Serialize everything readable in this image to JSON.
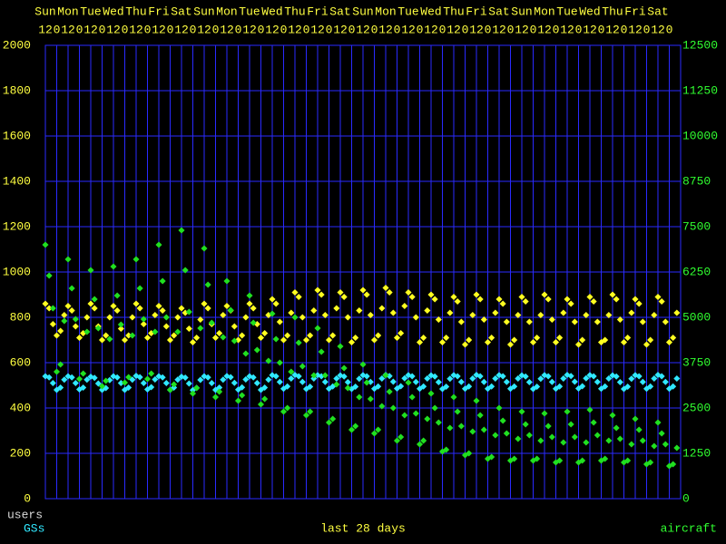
{
  "chart_data": {
    "type": "scatter",
    "subtitle": "last 28 days",
    "xlim": [
      0,
      672
    ],
    "xticks": [
      {
        "value": 0,
        "label": "12"
      },
      {
        "value": 12,
        "label": "0"
      },
      {
        "value": 24,
        "label": "12"
      },
      {
        "value": 36,
        "label": "0"
      },
      {
        "value": 48,
        "label": "12"
      },
      {
        "value": 60,
        "label": "0"
      },
      {
        "value": 72,
        "label": "12"
      },
      {
        "value": 84,
        "label": "0"
      },
      {
        "value": 96,
        "label": "12"
      },
      {
        "value": 108,
        "label": "0"
      },
      {
        "value": 120,
        "label": "12"
      },
      {
        "value": 132,
        "label": "0"
      },
      {
        "value": 144,
        "label": "12"
      },
      {
        "value": 156,
        "label": "0"
      },
      {
        "value": 168,
        "label": "12"
      },
      {
        "value": 180,
        "label": "0"
      },
      {
        "value": 192,
        "label": "12"
      },
      {
        "value": 204,
        "label": "0"
      },
      {
        "value": 216,
        "label": "12"
      },
      {
        "value": 228,
        "label": "0"
      },
      {
        "value": 240,
        "label": "12"
      },
      {
        "value": 252,
        "label": "0"
      },
      {
        "value": 264,
        "label": "12"
      },
      {
        "value": 276,
        "label": "0"
      },
      {
        "value": 288,
        "label": "12"
      },
      {
        "value": 300,
        "label": "0"
      },
      {
        "value": 312,
        "label": "12"
      },
      {
        "value": 324,
        "label": "0"
      },
      {
        "value": 336,
        "label": "12"
      },
      {
        "value": 348,
        "label": "0"
      },
      {
        "value": 360,
        "label": "12"
      },
      {
        "value": 372,
        "label": "0"
      },
      {
        "value": 384,
        "label": "12"
      },
      {
        "value": 396,
        "label": "0"
      },
      {
        "value": 408,
        "label": "12"
      },
      {
        "value": 420,
        "label": "0"
      },
      {
        "value": 432,
        "label": "12"
      },
      {
        "value": 444,
        "label": "0"
      },
      {
        "value": 456,
        "label": "12"
      },
      {
        "value": 468,
        "label": "0"
      },
      {
        "value": 480,
        "label": "12"
      },
      {
        "value": 492,
        "label": "0"
      },
      {
        "value": 504,
        "label": "12"
      },
      {
        "value": 516,
        "label": "0"
      },
      {
        "value": 528,
        "label": "12"
      },
      {
        "value": 540,
        "label": "0"
      },
      {
        "value": 552,
        "label": "12"
      },
      {
        "value": 564,
        "label": "0"
      },
      {
        "value": 576,
        "label": "12"
      },
      {
        "value": 588,
        "label": "0"
      },
      {
        "value": 600,
        "label": "12"
      },
      {
        "value": 612,
        "label": "0"
      },
      {
        "value": 624,
        "label": "12"
      },
      {
        "value": 636,
        "label": "0"
      },
      {
        "value": 648,
        "label": "12"
      },
      {
        "value": 660,
        "label": "0"
      }
    ],
    "day_labels": [
      {
        "value": 0,
        "label": "Sun"
      },
      {
        "value": 24,
        "label": "Mon"
      },
      {
        "value": 48,
        "label": "Tue"
      },
      {
        "value": 72,
        "label": "Wed"
      },
      {
        "value": 96,
        "label": "Thu"
      },
      {
        "value": 120,
        "label": "Fri"
      },
      {
        "value": 144,
        "label": "Sat"
      },
      {
        "value": 168,
        "label": "Sun"
      },
      {
        "value": 192,
        "label": "Mon"
      },
      {
        "value": 216,
        "label": "Tue"
      },
      {
        "value": 240,
        "label": "Wed"
      },
      {
        "value": 264,
        "label": "Thu"
      },
      {
        "value": 288,
        "label": "Fri"
      },
      {
        "value": 312,
        "label": "Sat"
      },
      {
        "value": 336,
        "label": "Sun"
      },
      {
        "value": 360,
        "label": "Mon"
      },
      {
        "value": 384,
        "label": "Tue"
      },
      {
        "value": 408,
        "label": "Wed"
      },
      {
        "value": 432,
        "label": "Thu"
      },
      {
        "value": 456,
        "label": "Fri"
      },
      {
        "value": 480,
        "label": "Sat"
      },
      {
        "value": 504,
        "label": "Sun"
      },
      {
        "value": 528,
        "label": "Mon"
      },
      {
        "value": 552,
        "label": "Tue"
      },
      {
        "value": 576,
        "label": "Wed"
      },
      {
        "value": 600,
        "label": "Thu"
      },
      {
        "value": 624,
        "label": "Fri"
      },
      {
        "value": 648,
        "label": "Sat"
      }
    ],
    "ylim": [
      0,
      2000
    ],
    "yticks": [
      0,
      200,
      400,
      600,
      800,
      1000,
      1200,
      1400,
      1600,
      1800,
      2000
    ],
    "y2lim": [
      0,
      12500
    ],
    "y2ticks": [
      0,
      1250,
      2500,
      3750,
      5000,
      6250,
      7500,
      8750,
      10000,
      11250,
      12500
    ],
    "grid": true,
    "y_tick_color": "#ffff40",
    "y2_tick_color": "#30ff30",
    "x_tick_color": "#ffff40",
    "x": [
      0,
      4,
      8,
      12,
      16,
      20,
      24,
      28,
      32,
      36,
      40,
      44,
      48,
      52,
      56,
      60,
      64,
      68,
      72,
      76,
      80,
      84,
      88,
      92,
      96,
      100,
      104,
      108,
      112,
      116,
      120,
      124,
      128,
      132,
      136,
      140,
      144,
      148,
      152,
      156,
      160,
      164,
      168,
      172,
      176,
      180,
      184,
      188,
      192,
      196,
      200,
      204,
      208,
      212,
      216,
      220,
      224,
      228,
      232,
      236,
      240,
      244,
      248,
      252,
      256,
      260,
      264,
      268,
      272,
      276,
      280,
      284,
      288,
      292,
      296,
      300,
      304,
      308,
      312,
      316,
      320,
      324,
      328,
      332,
      336,
      340,
      344,
      348,
      352,
      356,
      360,
      364,
      368,
      372,
      376,
      380,
      384,
      388,
      392,
      396,
      400,
      404,
      408,
      412,
      416,
      420,
      424,
      428,
      432,
      436,
      440,
      444,
      448,
      452,
      456,
      460,
      464,
      468,
      472,
      476,
      480,
      484,
      488,
      492,
      496,
      500,
      504,
      508,
      512,
      516,
      520,
      524,
      528,
      532,
      536,
      540,
      544,
      548,
      552,
      556,
      560,
      564,
      568,
      572,
      576,
      580,
      584,
      588,
      592,
      596,
      600,
      604,
      608,
      612,
      616,
      620,
      624,
      628,
      632,
      636,
      640,
      644,
      648,
      652,
      656,
      660,
      664,
      668
    ],
    "series": [
      {
        "name": "users",
        "color": "#ffff20",
        "label_color": "#d8d8d8",
        "axis": "y",
        "values": [
          860,
          840,
          770,
          720,
          740,
          810,
          850,
          830,
          760,
          710,
          730,
          800,
          860,
          840,
          760,
          700,
          720,
          800,
          850,
          830,
          750,
          700,
          720,
          800,
          860,
          840,
          770,
          710,
          730,
          810,
          850,
          830,
          760,
          700,
          720,
          800,
          840,
          820,
          750,
          690,
          710,
          790,
          860,
          840,
          770,
          710,
          730,
          810,
          850,
          830,
          760,
          700,
          720,
          800,
          860,
          840,
          770,
          710,
          730,
          810,
          880,
          860,
          780,
          700,
          720,
          820,
          910,
          890,
          800,
          700,
          720,
          830,
          920,
          900,
          810,
          700,
          720,
          840,
          910,
          890,
          800,
          690,
          710,
          830,
          920,
          900,
          810,
          700,
          720,
          840,
          930,
          910,
          820,
          710,
          730,
          850,
          910,
          890,
          800,
          690,
          710,
          830,
          900,
          880,
          790,
          690,
          710,
          820,
          890,
          870,
          780,
          680,
          700,
          810,
          900,
          880,
          790,
          690,
          710,
          820,
          880,
          860,
          780,
          680,
          700,
          810,
          890,
          870,
          780,
          690,
          710,
          810,
          900,
          880,
          790,
          690,
          710,
          820,
          880,
          860,
          780,
          680,
          700,
          810,
          890,
          870,
          780,
          690,
          700,
          810,
          900,
          880,
          790,
          690,
          710,
          820,
          880,
          860,
          780,
          680,
          700,
          810,
          890,
          870,
          780,
          690,
          710,
          820
        ]
      },
      {
        "name": "GSs",
        "color": "#30e8ff",
        "label_color": "#30e8ff",
        "axis": "y",
        "values": [
          540,
          535,
          510,
          480,
          490,
          525,
          540,
          535,
          510,
          482,
          490,
          525,
          538,
          533,
          508,
          480,
          488,
          523,
          540,
          535,
          510,
          480,
          490,
          525,
          542,
          536,
          510,
          482,
          492,
          526,
          540,
          535,
          510,
          480,
          490,
          525,
          538,
          534,
          508,
          479,
          489,
          524,
          540,
          535,
          510,
          480,
          490,
          525,
          541,
          536,
          511,
          481,
          491,
          526,
          540,
          535,
          510,
          480,
          490,
          525,
          545,
          540,
          515,
          485,
          495,
          530,
          546,
          540,
          515,
          484,
          494,
          530,
          545,
          540,
          515,
          485,
          495,
          530,
          544,
          539,
          514,
          484,
          494,
          529,
          545,
          540,
          515,
          485,
          495,
          530,
          546,
          541,
          516,
          486,
          496,
          531,
          545,
          540,
          515,
          485,
          495,
          530,
          544,
          539,
          514,
          484,
          494,
          529,
          545,
          540,
          515,
          485,
          495,
          530,
          546,
          540,
          515,
          485,
          495,
          530,
          545,
          540,
          515,
          485,
          495,
          530,
          544,
          539,
          514,
          484,
          494,
          529,
          545,
          540,
          515,
          485,
          495,
          530,
          546,
          541,
          516,
          486,
          496,
          531,
          545,
          540,
          515,
          485,
          495,
          530,
          544,
          539,
          514,
          484,
          494,
          529,
          545,
          540,
          515,
          485,
          495,
          530,
          546,
          540,
          515,
          485,
          495,
          530
        ]
      },
      {
        "name": "aircraft",
        "color": "#20e020",
        "label_color": "#30ff30",
        "axis": "y2",
        "values": [
          7000,
          6150,
          5250,
          3500,
          3700,
          4900,
          6600,
          5800,
          4950,
          3300,
          3450,
          4600,
          6300,
          5500,
          4700,
          3100,
          3250,
          4400,
          6400,
          5600,
          4800,
          3200,
          3350,
          4500,
          6600,
          5800,
          4950,
          3300,
          3450,
          4600,
          7000,
          6000,
          5000,
          3000,
          3150,
          4600,
          7400,
          6300,
          5150,
          2900,
          3050,
          4700,
          6900,
          5900,
          4850,
          2800,
          2950,
          4450,
          6000,
          5200,
          4350,
          2700,
          2850,
          4000,
          5600,
          4850,
          4100,
          2600,
          2750,
          3800,
          5100,
          4400,
          3750,
          2400,
          2500,
          3500,
          5000,
          4300,
          3650,
          2300,
          2400,
          3400,
          4700,
          4050,
          3400,
          2100,
          2200,
          3150,
          4200,
          3600,
          3050,
          1900,
          2000,
          2800,
          3700,
          3200,
          2750,
          1800,
          1900,
          2550,
          3400,
          2950,
          2500,
          1600,
          1700,
          2300,
          3200,
          2800,
          2350,
          1500,
          1600,
          2200,
          2900,
          2500,
          2100,
          1300,
          1350,
          1950,
          2800,
          2400,
          2000,
          1200,
          1250,
          1850,
          2700,
          2300,
          1900,
          1100,
          1150,
          1750,
          2500,
          2150,
          1800,
          1050,
          1100,
          1650,
          2400,
          2050,
          1750,
          1050,
          1100,
          1600,
          2350,
          2000,
          1700,
          1000,
          1050,
          1550,
          2400,
          2050,
          1700,
          1000,
          1050,
          1550,
          2450,
          2100,
          1750,
          1050,
          1100,
          1600,
          2300,
          1950,
          1650,
          1000,
          1050,
          1500,
          2200,
          1900,
          1600,
          950,
          1000,
          1450,
          2100,
          1800,
          1500,
          900,
          950,
          1400
        ]
      }
    ]
  }
}
